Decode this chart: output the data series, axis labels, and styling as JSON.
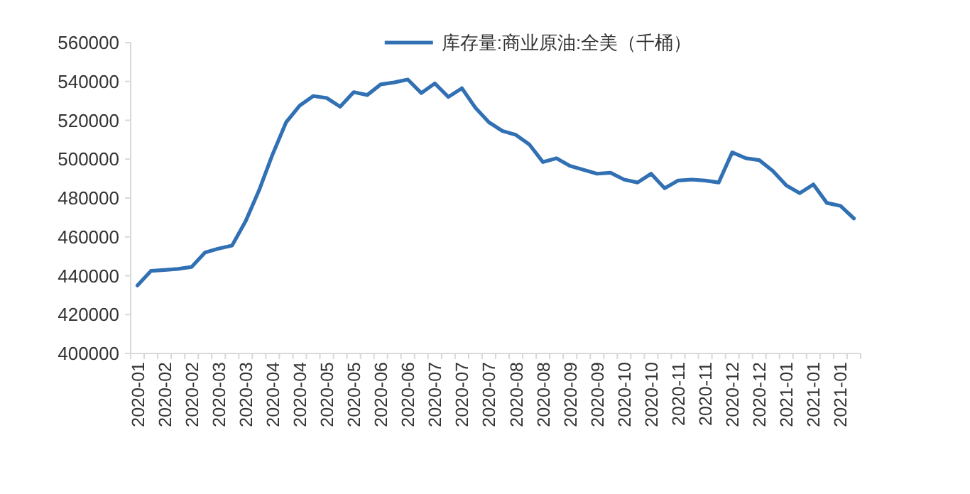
{
  "chart_data": {
    "type": "line",
    "categories": [
      "2020-01",
      null,
      "2020-02",
      null,
      "2020-02",
      null,
      "2020-03",
      null,
      "2020-03",
      null,
      "2020-04",
      null,
      "2020-04",
      null,
      "2020-05",
      null,
      "2020-05",
      null,
      "2020-06",
      null,
      "2020-06",
      null,
      "2020-07",
      null,
      "2020-07",
      null,
      "2020-07",
      null,
      "2020-08",
      null,
      "2020-08",
      null,
      "2020-09",
      null,
      "2020-09",
      null,
      "2020-10",
      null,
      "2020-10",
      null,
      "2020-11",
      null,
      "2020-11",
      null,
      "2020-12",
      null,
      "2020-12",
      null,
      "2021-01",
      null,
      "2021-01",
      null,
      "2021-01",
      null
    ],
    "series": [
      {
        "name": "库存量:商业原油:全美（千桶）",
        "color": "#3070b3",
        "values": [
          435000,
          442500,
          443000,
          443500,
          444500,
          452000,
          454000,
          455500,
          468000,
          484000,
          502500,
          519000,
          527500,
          532500,
          531500,
          527000,
          534500,
          533000,
          538500,
          539500,
          541000,
          534000,
          539000,
          532000,
          536500,
          526500,
          519000,
          514500,
          512500,
          507500,
          498500,
          500500,
          496500,
          494500,
          492500,
          493000,
          489500,
          488000,
          492500,
          485000,
          489000,
          489500,
          489000,
          488000,
          503500,
          500500,
          499500,
          494000,
          486500,
          482500,
          487000,
          477500,
          476000,
          469500
        ]
      }
    ],
    "ylim": [
      400000,
      560000
    ],
    "yticks": [
      400000,
      420000,
      440000,
      460000,
      480000,
      500000,
      520000,
      540000,
      560000
    ],
    "legend": "top"
  }
}
